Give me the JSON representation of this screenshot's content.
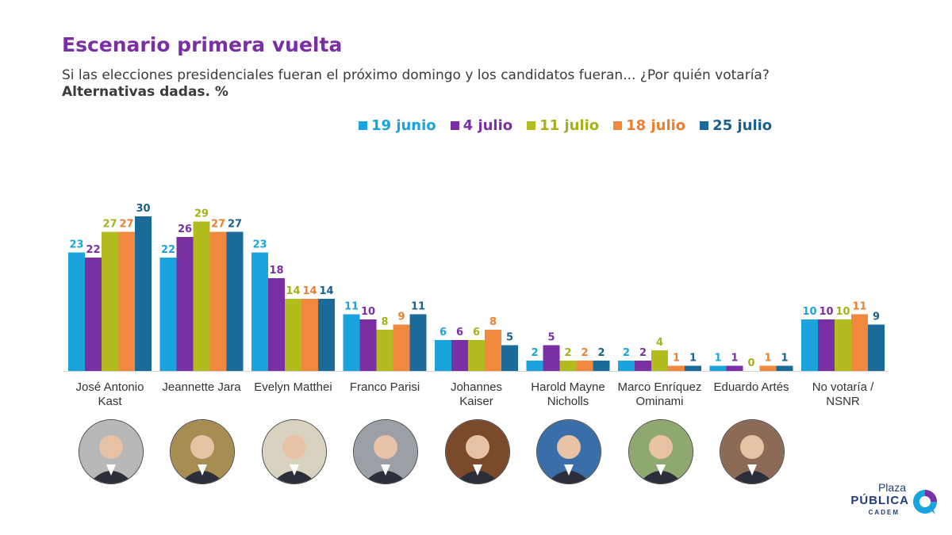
{
  "header": {
    "title": "Escenario primera vuelta",
    "subtitle": "Si las elecciones presidenciales fueran el próximo domingo y los candidatos fueran... ¿Por quién votaría?",
    "subtitle_bold": "Alternativas dadas. %"
  },
  "logo": {
    "line1": "Plaza",
    "line2": "PÚBLICA",
    "line3": "CADEM"
  },
  "photo_icons": [
    "person-photo-kast",
    "person-photo-jara",
    "person-photo-matthei",
    "person-photo-parisi",
    "person-photo-kaiser",
    "person-photo-mayne-nicholls",
    "person-photo-enriquez-ominami",
    "person-photo-artes"
  ],
  "chart_data": {
    "type": "bar",
    "categories": [
      [
        "José Antonio",
        "Kast"
      ],
      [
        "Jeannette Jara"
      ],
      [
        "Evelyn Matthei"
      ],
      [
        "Franco Parisi"
      ],
      [
        "Johannes",
        "Kaiser"
      ],
      [
        "Harold Mayne",
        "Nicholls"
      ],
      [
        "Marco Enríquez",
        "Ominami"
      ],
      [
        "Eduardo Artés"
      ],
      [
        "No votaría /",
        "NSNR"
      ]
    ],
    "series": [
      {
        "name": "19 junio",
        "color": "#1aa3dc",
        "label_color": "#1aa3dc",
        "values": [
          23,
          22,
          23,
          11,
          6,
          2,
          2,
          1,
          10
        ]
      },
      {
        "name": "4 julio",
        "color": "#7b2fa5",
        "label_color": "#7b2fa5",
        "values": [
          22,
          26,
          18,
          10,
          6,
          5,
          2,
          1,
          10
        ]
      },
      {
        "name": "11 julio",
        "color": "#b3bc1e",
        "label_color": "#a7b016",
        "values": [
          27,
          29,
          14,
          8,
          6,
          2,
          4,
          0,
          10
        ]
      },
      {
        "name": "18 julio",
        "color": "#f0883d",
        "label_color": "#ec7f2e",
        "values": [
          27,
          27,
          14,
          9,
          8,
          2,
          1,
          1,
          11
        ]
      },
      {
        "name": "25 julio",
        "color": "#1b6b9a",
        "label_color": "#1b5f8c",
        "values": [
          30,
          27,
          14,
          11,
          5,
          2,
          1,
          1,
          9
        ]
      }
    ],
    "ylim": [
      0,
      30
    ],
    "grid": false,
    "legend": "top-center"
  }
}
